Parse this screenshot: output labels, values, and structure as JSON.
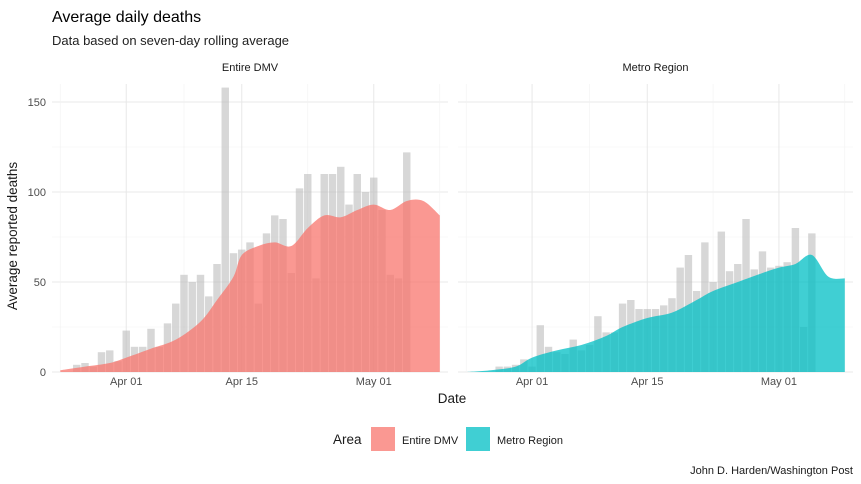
{
  "chart_data": {
    "type": "area",
    "title": "Average daily deaths",
    "subtitle": "Data based on seven-day rolling average",
    "xlabel": "Date",
    "ylabel": "Average reported deaths",
    "caption": "John D. Harden/Washington Post",
    "grid": true,
    "legend": {
      "title": "Area",
      "position": "bottom"
    },
    "ylim": [
      0,
      160
    ],
    "y_ticks": [
      0,
      50,
      100,
      150
    ],
    "x_ticks": [
      "Apr 01",
      "Apr 15",
      "May 01"
    ],
    "x_tick_days": [
      0,
      14,
      30
    ],
    "x_start_day": -9,
    "x_end_day": 39,
    "panels": [
      {
        "strip": "Entire DMV",
        "series_name": "Entire DMV",
        "color": "#F8766D",
        "bars": [
          0,
          4,
          5,
          3,
          11,
          12,
          6,
          23,
          14,
          14,
          24,
          14,
          27,
          38,
          54,
          50,
          54,
          42,
          60,
          158,
          66,
          68,
          72,
          38,
          77,
          87,
          85,
          55,
          102,
          110,
          52,
          110,
          110,
          114,
          93,
          110,
          100,
          108,
          90,
          54,
          52,
          122
        ],
        "bars_start_day": -7,
        "smooth_days": [
          -8,
          -5,
          -2,
          0,
          3,
          6,
          9,
          11,
          13,
          14,
          16,
          18,
          20,
          22,
          24,
          26,
          28,
          30,
          32,
          34,
          36,
          38
        ],
        "smooth_values": [
          1,
          3,
          5,
          8,
          13,
          18,
          28,
          40,
          53,
          65,
          70,
          72,
          70,
          80,
          87,
          86,
          90,
          93,
          90,
          95,
          95,
          87
        ]
      },
      {
        "strip": "Metro Region",
        "series_name": "Metro Region",
        "color": "#00BFC4",
        "bars": [
          0,
          0,
          0,
          3,
          3,
          4,
          7,
          3,
          26,
          14,
          11,
          10,
          18,
          12,
          15,
          31,
          22,
          22,
          38,
          40,
          35,
          35,
          35,
          37,
          41,
          58,
          65,
          45,
          72,
          50,
          78,
          56,
          60,
          85,
          57,
          67,
          58,
          59,
          61,
          80,
          25,
          77
        ],
        "bars_start_day": -7,
        "smooth_days": [
          -8,
          -5,
          -2,
          0,
          3,
          6,
          9,
          11,
          14,
          17,
          20,
          22,
          25,
          28,
          30,
          32,
          34,
          36,
          38
        ],
        "smooth_values": [
          0,
          1,
          3,
          8,
          12,
          15,
          20,
          25,
          30,
          33,
          40,
          45,
          50,
          55,
          58,
          60,
          65,
          53,
          52
        ]
      }
    ]
  }
}
